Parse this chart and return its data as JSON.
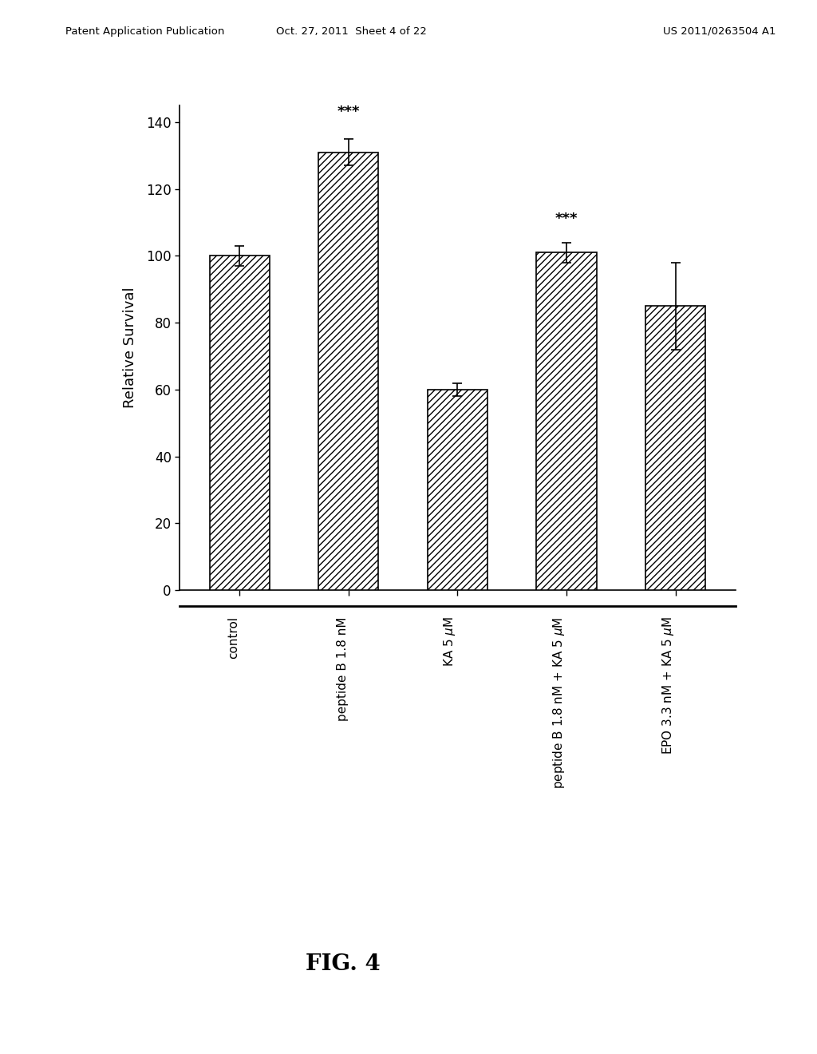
{
  "categories": [
    "control",
    "peptide B 1.8 nM",
    "KA 5 μM",
    "peptide B 1.8 nM + KA 5 μM",
    "EPO 3.3 nM + KA 5 μM"
  ],
  "values": [
    100,
    131,
    60,
    101,
    85
  ],
  "errors": [
    3,
    4,
    2,
    3,
    13
  ],
  "significance": [
    null,
    "***",
    null,
    "***",
    null
  ],
  "ylabel": "Relative Survival",
  "ylim": [
    0,
    145
  ],
  "yticks": [
    0,
    20,
    40,
    60,
    80,
    100,
    120,
    140
  ],
  "fig_caption": "FIG. 4",
  "header_left": "Patent Application Publication",
  "header_mid": "Oct. 27, 2011  Sheet 4 of 22",
  "header_right": "US 2011/0263504 A1",
  "hatch_pattern": "////",
  "bar_color": "white",
  "bar_edgecolor": "black",
  "background_color": "white",
  "bar_width": 0.55
}
